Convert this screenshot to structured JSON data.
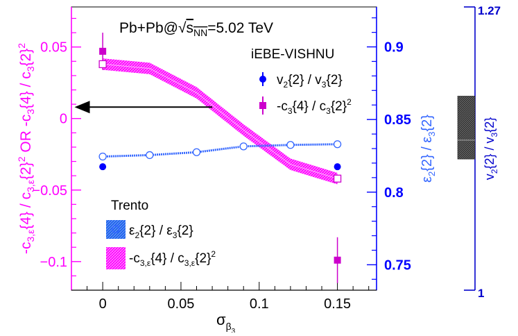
{
  "chart_data": {
    "type": "line",
    "title": "Pb+Pb@√s_NN=5.02 TeV",
    "title_parts": {
      "prefix": "Pb+Pb@",
      "sqrt": "√",
      "s": "s",
      "sub": "NN",
      "suffix": "=5.02 TeV"
    },
    "model_label": "iEBE-VISHNU",
    "trento_label": "Trento",
    "xlabel": {
      "main": "σ",
      "sub": "β",
      "subsub": "3"
    },
    "xlim": [
      -0.02,
      0.175
    ],
    "x_ticks": [
      {
        "value": 0,
        "label": "0"
      },
      {
        "value": 0.05,
        "label": "0.05"
      },
      {
        "value": 0.1,
        "label": "0.1"
      },
      {
        "value": 0.15,
        "label": "0.15"
      }
    ],
    "left_axis": {
      "ylim": [
        -0.12,
        0.078
      ],
      "color": "#ff00ff",
      "label": {
        "a": "-c",
        "a_sub": "3,ε",
        "b": "{4} / c",
        "b_sub": "3,ε",
        "c": "{2}",
        "c_sup": "2",
        "d": " OR -c",
        "d_sub": "3",
        "e": "{4} / c",
        "e_sub": "3",
        "f": "{2}",
        "f_sup": "2"
      },
      "ticks": [
        {
          "value": 0.05,
          "label": "0.05"
        },
        {
          "value": 0,
          "label": "0"
        },
        {
          "value": -0.05,
          "label": "−0.05"
        },
        {
          "value": -0.1,
          "label": "−0.1"
        }
      ]
    },
    "right_axis": {
      "ylim": [
        0.7325,
        0.9275
      ],
      "color": "#0000ff",
      "label": {
        "a": "ε",
        "a_sub": "2",
        "b": "{2} / ε",
        "b_sub": "3",
        "c": "{2}"
      },
      "ticks": [
        {
          "value": 0.9,
          "label": "0.9"
        },
        {
          "value": 0.85,
          "label": "0.85"
        },
        {
          "value": 0.8,
          "label": "0.8"
        },
        {
          "value": 0.75,
          "label": "0.75"
        }
      ]
    },
    "far_axis": {
      "range": [
        1,
        1.27
      ],
      "color": "#0000cc",
      "top_label": "1.27",
      "bottom_label": "1",
      "label": {
        "a": "v",
        "a_sub": "2",
        "b": "{2} / v",
        "b_sub": "3",
        "c": "{2}"
      },
      "band": [
        1.125,
        1.185
      ]
    },
    "series": [
      {
        "name": "-c_{3,ε}{4} / c_{3,ε}{2}^2 (Trento)",
        "axis": "left",
        "kind": "band",
        "color": "#ff00ff",
        "x": [
          0,
          0.03,
          0.06,
          0.09,
          0.12,
          0.15
        ],
        "y": [
          0.038,
          0.035,
          0.018,
          -0.008,
          -0.032,
          -0.042
        ],
        "half_width": 0.004
      },
      {
        "name": "ε_2{2} / ε_3{2} (Trento)",
        "axis": "right",
        "kind": "line-open-markers",
        "color": "#3366ff",
        "x": [
          0,
          0.03,
          0.06,
          0.09,
          0.12,
          0.15
        ],
        "y": [
          0.8245,
          0.8255,
          0.8275,
          0.8315,
          0.8325,
          0.833
        ]
      },
      {
        "name": "v_2{2} / v_3{2} (iEBE-VISHNU)",
        "axis": "right",
        "kind": "points",
        "color": "#0000ff",
        "x": [
          0,
          0.15
        ],
        "y": [
          0.8175,
          0.8175
        ]
      },
      {
        "name": "-c_3{4} / c_3{2}^2 (iEBE-VISHNU)",
        "axis": "left",
        "kind": "points-errors",
        "color": "#cc00cc",
        "x": [
          0,
          0.15
        ],
        "y": [
          0.047,
          -0.099
        ],
        "err": [
          0.013,
          0.016
        ]
      }
    ],
    "hollow_markers": [
      {
        "axis": "left",
        "x": 0,
        "y": 0.038
      },
      {
        "axis": "left",
        "x": 0.15,
        "y": -0.042
      }
    ],
    "arrow": {
      "axis": "left",
      "x_from": 0.07,
      "x_to": -0.018,
      "y": 0.008
    },
    "legend_model": [
      {
        "label": {
          "a": "v",
          "a_sub": "2",
          "b": "{2} / v",
          "b_sub": "3",
          "c": "{2}"
        }
      },
      {
        "label": {
          "a": "-c",
          "a_sub": "3",
          "b": "{4} / c",
          "b_sub": "3",
          "c": "{2}",
          "c_sup": "2"
        }
      }
    ],
    "legend_trento": [
      {
        "label": {
          "a": "ε",
          "a_sub": "2",
          "b": "{2} / ε",
          "b_sub": "3",
          "c": "{2}"
        }
      },
      {
        "label": {
          "a": "-c",
          "a_sub": "3,ε",
          "b": "{4} / c",
          "b_sub": "3,ε",
          "c": "{2}",
          "c_sup": "2"
        }
      }
    ]
  }
}
